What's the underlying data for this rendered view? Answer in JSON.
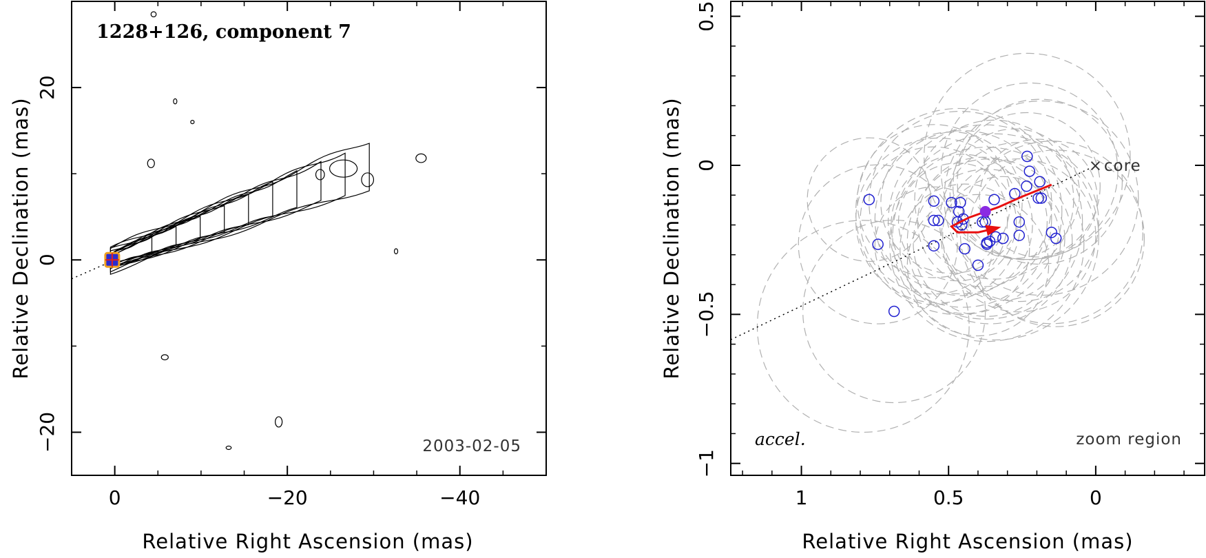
{
  "chart_data": [
    {
      "type": "contour",
      "title": "1228+126, component 7",
      "xlabel": "Relative Right Ascension (mas)",
      "ylabel": "Relative Declination (mas)",
      "xlim": [
        5,
        -50
      ],
      "ylim": [
        -25,
        30
      ],
      "xticks": [
        0,
        -20,
        -40
      ],
      "yticks": [
        20,
        0,
        -20
      ],
      "xtick_labels": [
        "0",
        "−20",
        "−40"
      ],
      "ytick_labels": [
        "20",
        "0",
        "−20"
      ],
      "date_label": "2003-02-05",
      "component_position": [
        0.3,
        0.0
      ],
      "jet_axis": {
        "from": [
          5,
          -2.2
        ],
        "to": [
          0,
          0
        ]
      },
      "contour_levels": 10,
      "marker_colors": {
        "component_fill": "#2b2bd0",
        "component_edge": "#f0a020",
        "cross": "#e02020"
      }
    },
    {
      "type": "scatter",
      "xlabel": "Relative Right Ascension (mas)",
      "ylabel": "Relative Declination (mas)",
      "xlim": [
        1.24,
        -0.37
      ],
      "ylim": [
        -1.04,
        0.55
      ],
      "xticks": [
        1,
        0.5,
        0
      ],
      "yticks": [
        0.5,
        0,
        -0.5,
        -1
      ],
      "xtick_labels": [
        "1",
        "0.5",
        "0"
      ],
      "ytick_labels": [
        "0.5",
        "0",
        "−0.5",
        "−1"
      ],
      "corner_left": "accel.",
      "corner_right": "zoom region",
      "core_label": "core",
      "core_position": [
        0,
        0
      ],
      "series": [
        {
          "type": "scatter",
          "points": [
            [
              0.233,
              0.03
            ],
            [
              0.225,
              -0.02
            ],
            [
              0.19,
              -0.055
            ],
            [
              0.235,
              -0.07
            ],
            [
              0.275,
              -0.095
            ],
            [
              0.195,
              -0.11
            ],
            [
              0.185,
              -0.11
            ],
            [
              0.345,
              -0.115
            ],
            [
              0.49,
              -0.125
            ],
            [
              0.46,
              -0.125
            ],
            [
              0.55,
              -0.12
            ],
            [
              0.77,
              -0.115
            ],
            [
              0.465,
              -0.155
            ],
            [
              0.45,
              -0.18
            ],
            [
              0.535,
              -0.185
            ],
            [
              0.55,
              -0.185
            ],
            [
              0.385,
              -0.19
            ],
            [
              0.47,
              -0.19
            ],
            [
              0.375,
              -0.19
            ],
            [
              0.26,
              -0.19
            ],
            [
              0.455,
              -0.2
            ],
            [
              0.15,
              -0.225
            ],
            [
              0.26,
              -0.235
            ],
            [
              0.315,
              -0.245
            ],
            [
              0.34,
              -0.24
            ],
            [
              0.135,
              -0.245
            ],
            [
              0.36,
              -0.255
            ],
            [
              0.37,
              -0.26
            ],
            [
              0.445,
              -0.28
            ],
            [
              0.55,
              -0.27
            ],
            [
              0.37,
              -0.265
            ],
            [
              0.74,
              -0.265
            ],
            [
              0.4,
              -0.335
            ],
            [
              0.685,
              -0.49
            ]
          ]
        },
        {
          "type": "marker",
          "point": [
            0.375,
            -0.155
          ]
        },
        {
          "type": "trajectory",
          "points": [
            [
              0.15,
              -0.065
            ],
            [
              0.25,
              -0.105
            ],
            [
              0.33,
              -0.14
            ],
            [
              0.43,
              -0.175
            ],
            [
              0.49,
              -0.205
            ],
            [
              0.47,
              -0.225
            ],
            [
              0.4,
              -0.225
            ],
            [
              0.335,
              -0.21
            ]
          ]
        },
        {
          "type": "uncertainty_ellipses",
          "count": 34
        }
      ],
      "marker_colors": {
        "points": "#2020d0",
        "current": "#8a2be2",
        "trajectory": "#e81010",
        "ellipses": "#b0b0b0"
      }
    }
  ]
}
